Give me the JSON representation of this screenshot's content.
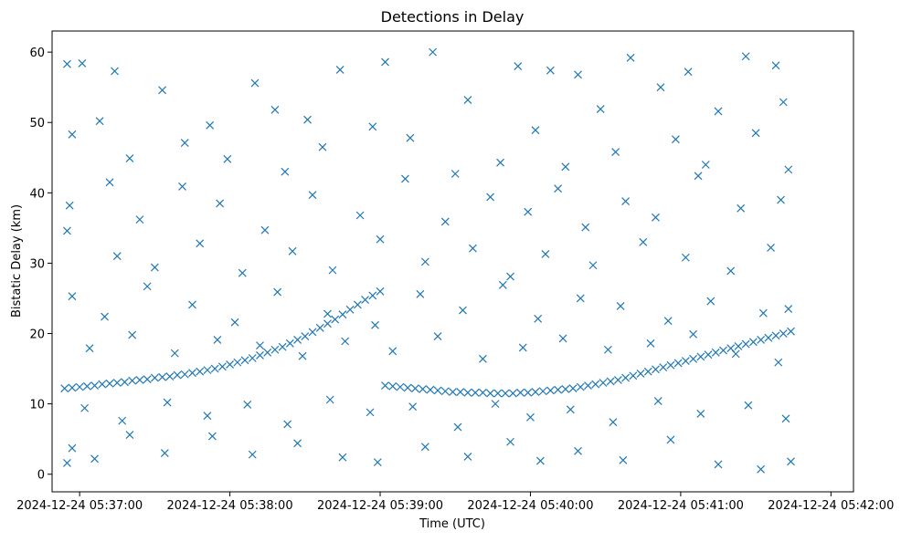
{
  "chart_data": {
    "type": "scatter",
    "title": "Detections in Delay",
    "xlabel": "Time (UTC)",
    "ylabel": "Bistatic Delay (km)",
    "marker": "x",
    "color": "#1f77b4",
    "grid": false,
    "xlim": [
      "2024-12-24 05:36:49",
      "2024-12-24 05:42:09"
    ],
    "ylim": [
      -2.5,
      63
    ],
    "x_ticks": [
      "2024-12-24 05:37:00",
      "2024-12-24 05:38:00",
      "2024-12-24 05:39:00",
      "2024-12-24 05:40:00",
      "2024-12-24 05:41:00",
      "2024-12-24 05:42:00"
    ],
    "y_ticks": [
      0,
      10,
      20,
      30,
      40,
      50,
      60
    ],
    "track_points": [
      [
        "2024-12-24 05:36:54",
        12.2
      ],
      [
        "2024-12-24 05:36:57",
        12.3
      ],
      [
        "2024-12-24 05:37:00",
        12.4
      ],
      [
        "2024-12-24 05:37:03",
        12.5
      ],
      [
        "2024-12-24 05:37:06",
        12.6
      ],
      [
        "2024-12-24 05:37:09",
        12.8
      ],
      [
        "2024-12-24 05:37:12",
        12.9
      ],
      [
        "2024-12-24 05:37:15",
        13.0
      ],
      [
        "2024-12-24 05:37:18",
        13.1
      ],
      [
        "2024-12-24 05:37:21",
        13.3
      ],
      [
        "2024-12-24 05:37:24",
        13.4
      ],
      [
        "2024-12-24 05:37:27",
        13.5
      ],
      [
        "2024-12-24 05:37:30",
        13.7
      ],
      [
        "2024-12-24 05:37:33",
        13.8
      ],
      [
        "2024-12-24 05:37:36",
        13.9
      ],
      [
        "2024-12-24 05:37:39",
        14.1
      ],
      [
        "2024-12-24 05:37:42",
        14.2
      ],
      [
        "2024-12-24 05:37:45",
        14.4
      ],
      [
        "2024-12-24 05:37:48",
        14.6
      ],
      [
        "2024-12-24 05:37:51",
        14.8
      ],
      [
        "2024-12-24 05:37:54",
        15.0
      ],
      [
        "2024-12-24 05:37:57",
        15.3
      ],
      [
        "2024-12-24 05:38:00",
        15.6
      ],
      [
        "2024-12-24 05:38:03",
        15.9
      ],
      [
        "2024-12-24 05:38:06",
        16.2
      ],
      [
        "2024-12-24 05:38:09",
        16.5
      ],
      [
        "2024-12-24 05:38:12",
        16.9
      ],
      [
        "2024-12-24 05:38:15",
        17.3
      ],
      [
        "2024-12-24 05:38:18",
        17.7
      ],
      [
        "2024-12-24 05:38:21",
        18.1
      ],
      [
        "2024-12-24 05:38:24",
        18.6
      ],
      [
        "2024-12-24 05:38:27",
        19.1
      ],
      [
        "2024-12-24 05:38:30",
        19.6
      ],
      [
        "2024-12-24 05:38:33",
        20.2
      ],
      [
        "2024-12-24 05:38:36",
        20.8
      ],
      [
        "2024-12-24 05:38:39",
        21.4
      ],
      [
        "2024-12-24 05:38:42",
        22.0
      ],
      [
        "2024-12-24 05:38:45",
        22.7
      ],
      [
        "2024-12-24 05:38:48",
        23.4
      ],
      [
        "2024-12-24 05:38:51",
        24.1
      ],
      [
        "2024-12-24 05:38:54",
        24.8
      ],
      [
        "2024-12-24 05:38:57",
        25.4
      ],
      [
        "2024-12-24 05:39:00",
        26.0
      ],
      [
        "2024-12-24 05:39:02",
        12.6
      ],
      [
        "2024-12-24 05:39:05",
        12.5
      ],
      [
        "2024-12-24 05:39:08",
        12.4
      ],
      [
        "2024-12-24 05:39:11",
        12.3
      ],
      [
        "2024-12-24 05:39:14",
        12.2
      ],
      [
        "2024-12-24 05:39:17",
        12.1
      ],
      [
        "2024-12-24 05:39:20",
        12.0
      ],
      [
        "2024-12-24 05:39:23",
        11.9
      ],
      [
        "2024-12-24 05:39:26",
        11.8
      ],
      [
        "2024-12-24 05:39:29",
        11.7
      ],
      [
        "2024-12-24 05:39:32",
        11.7
      ],
      [
        "2024-12-24 05:39:35",
        11.6
      ],
      [
        "2024-12-24 05:39:38",
        11.6
      ],
      [
        "2024-12-24 05:39:41",
        11.6
      ],
      [
        "2024-12-24 05:39:44",
        11.5
      ],
      [
        "2024-12-24 05:39:47",
        11.5
      ],
      [
        "2024-12-24 05:39:50",
        11.5
      ],
      [
        "2024-12-24 05:39:53",
        11.5
      ],
      [
        "2024-12-24 05:39:56",
        11.6
      ],
      [
        "2024-12-24 05:39:59",
        11.6
      ],
      [
        "2024-12-24 05:40:02",
        11.7
      ],
      [
        "2024-12-24 05:40:05",
        11.8
      ],
      [
        "2024-12-24 05:40:08",
        11.9
      ],
      [
        "2024-12-24 05:40:11",
        12.0
      ],
      [
        "2024-12-24 05:40:14",
        12.1
      ],
      [
        "2024-12-24 05:40:17",
        12.2
      ],
      [
        "2024-12-24 05:40:20",
        12.4
      ],
      [
        "2024-12-24 05:40:23",
        12.6
      ],
      [
        "2024-12-24 05:40:26",
        12.8
      ],
      [
        "2024-12-24 05:40:29",
        13.0
      ],
      [
        "2024-12-24 05:40:32",
        13.2
      ],
      [
        "2024-12-24 05:40:35",
        13.4
      ],
      [
        "2024-12-24 05:40:38",
        13.7
      ],
      [
        "2024-12-24 05:40:41",
        14.0
      ],
      [
        "2024-12-24 05:40:44",
        14.3
      ],
      [
        "2024-12-24 05:40:47",
        14.6
      ],
      [
        "2024-12-24 05:40:50",
        14.9
      ],
      [
        "2024-12-24 05:40:53",
        15.2
      ],
      [
        "2024-12-24 05:40:56",
        15.5
      ],
      [
        "2024-12-24 05:40:59",
        15.8
      ],
      [
        "2024-12-24 05:41:02",
        16.1
      ],
      [
        "2024-12-24 05:41:05",
        16.4
      ],
      [
        "2024-12-24 05:41:08",
        16.7
      ],
      [
        "2024-12-24 05:41:11",
        17.0
      ],
      [
        "2024-12-24 05:41:14",
        17.3
      ],
      [
        "2024-12-24 05:41:17",
        17.6
      ],
      [
        "2024-12-24 05:41:20",
        17.9
      ],
      [
        "2024-12-24 05:41:23",
        18.2
      ],
      [
        "2024-12-24 05:41:26",
        18.5
      ],
      [
        "2024-12-24 05:41:29",
        18.8
      ],
      [
        "2024-12-24 05:41:32",
        19.1
      ],
      [
        "2024-12-24 05:41:35",
        19.4
      ],
      [
        "2024-12-24 05:41:38",
        19.7
      ],
      [
        "2024-12-24 05:41:41",
        20.0
      ],
      [
        "2024-12-24 05:41:44",
        20.3
      ]
    ],
    "scatter_points": [
      [
        "2024-12-24 05:36:55",
        58.3
      ],
      [
        "2024-12-24 05:37:01",
        58.4
      ],
      [
        "2024-12-24 05:37:14",
        57.3
      ],
      [
        "2024-12-24 05:37:33",
        54.6
      ],
      [
        "2024-12-24 05:37:52",
        49.6
      ],
      [
        "2024-12-24 05:38:10",
        55.6
      ],
      [
        "2024-12-24 05:38:18",
        51.8
      ],
      [
        "2024-12-24 05:38:31",
        50.4
      ],
      [
        "2024-12-24 05:38:44",
        57.5
      ],
      [
        "2024-12-24 05:39:02",
        58.6
      ],
      [
        "2024-12-24 05:39:21",
        60.0
      ],
      [
        "2024-12-24 05:39:35",
        53.2
      ],
      [
        "2024-12-24 05:39:55",
        58.0
      ],
      [
        "2024-12-24 05:40:08",
        57.4
      ],
      [
        "2024-12-24 05:40:19",
        56.8
      ],
      [
        "2024-12-24 05:40:28",
        51.9
      ],
      [
        "2024-12-24 05:40:40",
        59.2
      ],
      [
        "2024-12-24 05:40:52",
        55.0
      ],
      [
        "2024-12-24 05:41:03",
        57.2
      ],
      [
        "2024-12-24 05:41:15",
        51.6
      ],
      [
        "2024-12-24 05:41:26",
        59.4
      ],
      [
        "2024-12-24 05:41:38",
        58.1
      ],
      [
        "2024-12-24 05:41:41",
        52.9
      ],
      [
        "2024-12-24 05:36:57",
        48.3
      ],
      [
        "2024-12-24 05:37:08",
        50.2
      ],
      [
        "2024-12-24 05:37:20",
        44.9
      ],
      [
        "2024-12-24 05:37:42",
        47.1
      ],
      [
        "2024-12-24 05:37:59",
        44.8
      ],
      [
        "2024-12-24 05:38:22",
        43.0
      ],
      [
        "2024-12-24 05:38:37",
        46.5
      ],
      [
        "2024-12-24 05:38:57",
        49.4
      ],
      [
        "2024-12-24 05:39:12",
        47.8
      ],
      [
        "2024-12-24 05:39:30",
        42.7
      ],
      [
        "2024-12-24 05:39:48",
        44.3
      ],
      [
        "2024-12-24 05:40:02",
        48.9
      ],
      [
        "2024-12-24 05:40:14",
        43.7
      ],
      [
        "2024-12-24 05:40:34",
        45.8
      ],
      [
        "2024-12-24 05:40:58",
        47.6
      ],
      [
        "2024-12-24 05:41:10",
        44.0
      ],
      [
        "2024-12-24 05:41:30",
        48.5
      ],
      [
        "2024-12-24 05:41:43",
        43.3
      ],
      [
        "2024-12-24 05:36:56",
        38.2
      ],
      [
        "2024-12-24 05:37:12",
        41.5
      ],
      [
        "2024-12-24 05:37:24",
        36.2
      ],
      [
        "2024-12-24 05:37:41",
        40.9
      ],
      [
        "2024-12-24 05:37:56",
        38.5
      ],
      [
        "2024-12-24 05:38:14",
        34.7
      ],
      [
        "2024-12-24 05:38:33",
        39.7
      ],
      [
        "2024-12-24 05:38:52",
        36.8
      ],
      [
        "2024-12-24 05:39:10",
        42.0
      ],
      [
        "2024-12-24 05:39:26",
        35.9
      ],
      [
        "2024-12-24 05:39:44",
        39.4
      ],
      [
        "2024-12-24 05:39:59",
        37.3
      ],
      [
        "2024-12-24 05:40:11",
        40.6
      ],
      [
        "2024-12-24 05:40:22",
        35.1
      ],
      [
        "2024-12-24 05:40:38",
        38.8
      ],
      [
        "2024-12-24 05:40:50",
        36.5
      ],
      [
        "2024-12-24 05:41:07",
        42.4
      ],
      [
        "2024-12-24 05:41:24",
        37.8
      ],
      [
        "2024-12-24 05:41:40",
        39.0
      ],
      [
        "2024-12-24 05:36:55",
        34.6
      ],
      [
        "2024-12-24 05:37:15",
        31.0
      ],
      [
        "2024-12-24 05:37:30",
        29.4
      ],
      [
        "2024-12-24 05:37:48",
        32.8
      ],
      [
        "2024-12-24 05:38:05",
        28.6
      ],
      [
        "2024-12-24 05:38:25",
        31.7
      ],
      [
        "2024-12-24 05:38:41",
        29.0
      ],
      [
        "2024-12-24 05:39:00",
        33.4
      ],
      [
        "2024-12-24 05:39:18",
        30.2
      ],
      [
        "2024-12-24 05:39:37",
        32.1
      ],
      [
        "2024-12-24 05:39:52",
        28.1
      ],
      [
        "2024-12-24 05:40:06",
        31.3
      ],
      [
        "2024-12-24 05:40:25",
        29.7
      ],
      [
        "2024-12-24 05:40:45",
        33.0
      ],
      [
        "2024-12-24 05:41:02",
        30.8
      ],
      [
        "2024-12-24 05:41:20",
        28.9
      ],
      [
        "2024-12-24 05:41:36",
        32.2
      ],
      [
        "2024-12-24 05:36:57",
        25.3
      ],
      [
        "2024-12-24 05:37:10",
        22.4
      ],
      [
        "2024-12-24 05:37:27",
        26.7
      ],
      [
        "2024-12-24 05:37:45",
        24.1
      ],
      [
        "2024-12-24 05:38:02",
        21.6
      ],
      [
        "2024-12-24 05:38:19",
        25.9
      ],
      [
        "2024-12-24 05:38:39",
        22.8
      ],
      [
        "2024-12-24 05:38:58",
        21.2
      ],
      [
        "2024-12-24 05:39:16",
        25.6
      ],
      [
        "2024-12-24 05:39:33",
        23.3
      ],
      [
        "2024-12-24 05:39:49",
        26.9
      ],
      [
        "2024-12-24 05:40:03",
        22.1
      ],
      [
        "2024-12-24 05:40:20",
        25.0
      ],
      [
        "2024-12-24 05:40:36",
        23.9
      ],
      [
        "2024-12-24 05:40:55",
        21.8
      ],
      [
        "2024-12-24 05:41:12",
        24.6
      ],
      [
        "2024-12-24 05:41:33",
        22.9
      ],
      [
        "2024-12-24 05:41:43",
        23.5
      ],
      [
        "2024-12-24 05:37:04",
        17.9
      ],
      [
        "2024-12-24 05:37:21",
        19.8
      ],
      [
        "2024-12-24 05:37:38",
        17.2
      ],
      [
        "2024-12-24 05:37:55",
        19.1
      ],
      [
        "2024-12-24 05:38:12",
        18.3
      ],
      [
        "2024-12-24 05:38:29",
        16.8
      ],
      [
        "2024-12-24 05:38:46",
        18.9
      ],
      [
        "2024-12-24 05:39:05",
        17.5
      ],
      [
        "2024-12-24 05:39:23",
        19.6
      ],
      [
        "2024-12-24 05:39:41",
        16.4
      ],
      [
        "2024-12-24 05:39:57",
        18.0
      ],
      [
        "2024-12-24 05:40:13",
        19.3
      ],
      [
        "2024-12-24 05:40:31",
        17.7
      ],
      [
        "2024-12-24 05:40:48",
        18.6
      ],
      [
        "2024-12-24 05:41:05",
        19.9
      ],
      [
        "2024-12-24 05:41:22",
        17.1
      ],
      [
        "2024-12-24 05:41:39",
        15.9
      ],
      [
        "2024-12-24 05:37:02",
        9.4
      ],
      [
        "2024-12-24 05:37:17",
        7.6
      ],
      [
        "2024-12-24 05:37:35",
        10.2
      ],
      [
        "2024-12-24 05:37:51",
        8.3
      ],
      [
        "2024-12-24 05:38:07",
        9.9
      ],
      [
        "2024-12-24 05:38:23",
        7.1
      ],
      [
        "2024-12-24 05:38:40",
        10.6
      ],
      [
        "2024-12-24 05:38:56",
        8.8
      ],
      [
        "2024-12-24 05:39:13",
        9.6
      ],
      [
        "2024-12-24 05:39:31",
        6.7
      ],
      [
        "2024-12-24 05:39:46",
        10.0
      ],
      [
        "2024-12-24 05:40:00",
        8.1
      ],
      [
        "2024-12-24 05:40:16",
        9.2
      ],
      [
        "2024-12-24 05:40:33",
        7.4
      ],
      [
        "2024-12-24 05:40:51",
        10.4
      ],
      [
        "2024-12-24 05:41:08",
        8.6
      ],
      [
        "2024-12-24 05:41:27",
        9.8
      ],
      [
        "2024-12-24 05:41:42",
        7.9
      ],
      [
        "2024-12-24 05:36:55",
        1.6
      ],
      [
        "2024-12-24 05:36:57",
        3.7
      ],
      [
        "2024-12-24 05:37:06",
        2.2
      ],
      [
        "2024-12-24 05:37:20",
        5.6
      ],
      [
        "2024-12-24 05:37:34",
        3.0
      ],
      [
        "2024-12-24 05:37:53",
        5.4
      ],
      [
        "2024-12-24 05:38:09",
        2.8
      ],
      [
        "2024-12-24 05:38:27",
        4.4
      ],
      [
        "2024-12-24 05:38:45",
        2.4
      ],
      [
        "2024-12-24 05:38:59",
        1.7
      ],
      [
        "2024-12-24 05:39:18",
        3.9
      ],
      [
        "2024-12-24 05:39:35",
        2.5
      ],
      [
        "2024-12-24 05:39:52",
        4.6
      ],
      [
        "2024-12-24 05:40:04",
        1.9
      ],
      [
        "2024-12-24 05:40:19",
        3.3
      ],
      [
        "2024-12-24 05:40:37",
        2.0
      ],
      [
        "2024-12-24 05:40:56",
        4.9
      ],
      [
        "2024-12-24 05:41:15",
        1.4
      ],
      [
        "2024-12-24 05:41:32",
        0.7
      ],
      [
        "2024-12-24 05:41:44",
        1.8
      ]
    ]
  }
}
